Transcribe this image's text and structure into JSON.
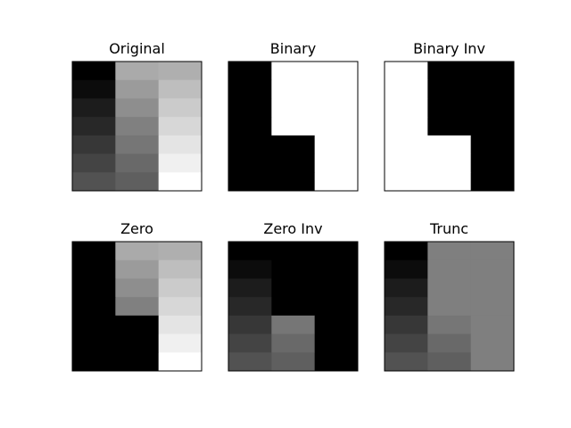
{
  "chart_data": [
    {
      "type": "heatmap",
      "title": "Original",
      "colormap": "gray",
      "value_range": [
        0,
        255
      ],
      "matrix": [
        [
          0,
          170,
          175
        ],
        [
          12,
          155,
          190
        ],
        [
          28,
          142,
          203
        ],
        [
          40,
          128,
          215
        ],
        [
          55,
          118,
          228
        ],
        [
          68,
          105,
          240
        ],
        [
          82,
          95,
          255
        ]
      ]
    },
    {
      "type": "heatmap",
      "title": "Binary",
      "colormap": "gray",
      "value_range": [
        0,
        255
      ],
      "matrix": [
        [
          0,
          255,
          255
        ],
        [
          0,
          255,
          255
        ],
        [
          0,
          255,
          255
        ],
        [
          0,
          255,
          255
        ],
        [
          0,
          0,
          255
        ],
        [
          0,
          0,
          255
        ],
        [
          0,
          0,
          255
        ]
      ]
    },
    {
      "type": "heatmap",
      "title": "Binary Inv",
      "colormap": "gray",
      "value_range": [
        0,
        255
      ],
      "matrix": [
        [
          255,
          0,
          0
        ],
        [
          255,
          0,
          0
        ],
        [
          255,
          0,
          0
        ],
        [
          255,
          0,
          0
        ],
        [
          255,
          255,
          0
        ],
        [
          255,
          255,
          0
        ],
        [
          255,
          255,
          0
        ]
      ]
    },
    {
      "type": "heatmap",
      "title": "Zero",
      "colormap": "gray",
      "value_range": [
        0,
        255
      ],
      "matrix": [
        [
          0,
          170,
          175
        ],
        [
          0,
          155,
          190
        ],
        [
          0,
          142,
          203
        ],
        [
          0,
          128,
          215
        ],
        [
          0,
          0,
          228
        ],
        [
          0,
          0,
          240
        ],
        [
          0,
          0,
          255
        ]
      ]
    },
    {
      "type": "heatmap",
      "title": "Zero Inv",
      "colormap": "gray",
      "value_range": [
        0,
        255
      ],
      "matrix": [
        [
          0,
          0,
          0
        ],
        [
          12,
          0,
          0
        ],
        [
          28,
          0,
          0
        ],
        [
          40,
          0,
          0
        ],
        [
          55,
          118,
          0
        ],
        [
          68,
          105,
          0
        ],
        [
          82,
          95,
          0
        ]
      ]
    },
    {
      "type": "heatmap",
      "title": "Trunc",
      "colormap": "gray",
      "value_range": [
        0,
        255
      ],
      "matrix": [
        [
          0,
          127,
          127
        ],
        [
          12,
          127,
          127
        ],
        [
          28,
          127,
          127
        ],
        [
          40,
          127,
          127
        ],
        [
          55,
          118,
          127
        ],
        [
          68,
          105,
          127
        ],
        [
          82,
          95,
          127
        ]
      ]
    }
  ]
}
